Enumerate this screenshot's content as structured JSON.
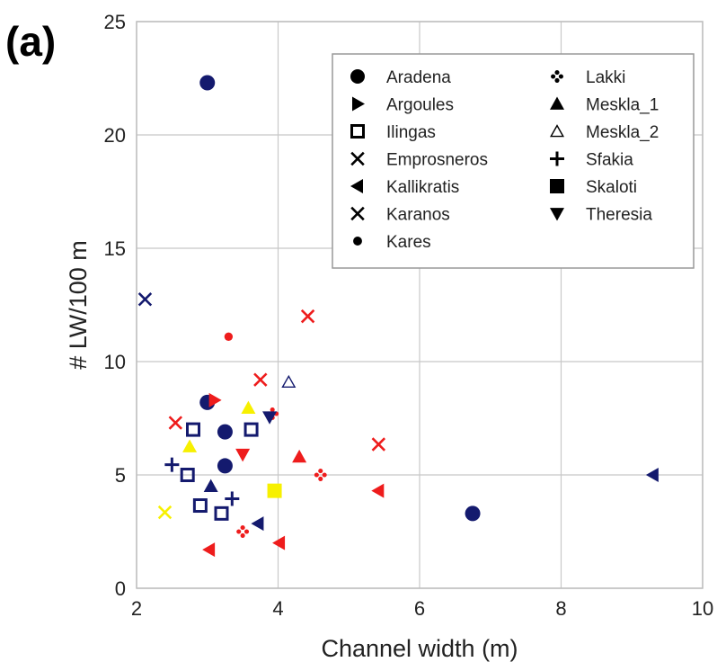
{
  "chart_data": {
    "type": "scatter",
    "panel_label": "(a)",
    "xlabel": "Channel width (m)",
    "ylabel": "# LW/100 m",
    "xlim": [
      2,
      10
    ],
    "ylim": [
      0,
      25
    ],
    "xticks": [
      "2",
      "4",
      "6",
      "8",
      "10"
    ],
    "yticks": [
      "0",
      "5",
      "10",
      "15",
      "20",
      "25"
    ],
    "grid": true,
    "legend_position": "top-right",
    "colors": {
      "navy": "#141a6e",
      "red": "#ee1c1c",
      "yellow": "#f7f000"
    },
    "legend": [
      {
        "name": "Aradena",
        "marker": "circle"
      },
      {
        "name": "Argoules",
        "marker": "triangle-right"
      },
      {
        "name": "Ilingas",
        "marker": "square-open"
      },
      {
        "name": "Emprosneros",
        "marker": "x"
      },
      {
        "name": "Kallikratis",
        "marker": "triangle-left"
      },
      {
        "name": "Karanos",
        "marker": "x"
      },
      {
        "name": "Kares",
        "marker": "dot"
      },
      {
        "name": "Lakki",
        "marker": "diamond-dots"
      },
      {
        "name": "Meskla_1",
        "marker": "triangle-up"
      },
      {
        "name": "Meskla_2",
        "marker": "triangle-up-open"
      },
      {
        "name": "Sfakia",
        "marker": "plus"
      },
      {
        "name": "Skaloti",
        "marker": "square"
      },
      {
        "name": "Theresia",
        "marker": "triangle-down"
      }
    ],
    "points": [
      {
        "series": "Aradena",
        "color": "navy",
        "x": 3.0,
        "y": 22.3
      },
      {
        "series": "Aradena",
        "color": "navy",
        "x": 3.0,
        "y": 8.2
      },
      {
        "series": "Aradena",
        "color": "navy",
        "x": 3.25,
        "y": 6.9
      },
      {
        "series": "Aradena",
        "color": "navy",
        "x": 3.25,
        "y": 5.4
      },
      {
        "series": "Aradena",
        "color": "navy",
        "x": 6.75,
        "y": 3.3
      },
      {
        "series": "Argoules",
        "color": "red",
        "x": 3.1,
        "y": 8.3
      },
      {
        "series": "Ilingas",
        "color": "navy",
        "x": 2.8,
        "y": 7.0
      },
      {
        "series": "Ilingas",
        "color": "navy",
        "x": 3.62,
        "y": 7.0
      },
      {
        "series": "Ilingas",
        "color": "navy",
        "x": 2.72,
        "y": 5.0
      },
      {
        "series": "Ilingas",
        "color": "navy",
        "x": 2.9,
        "y": 3.65
      },
      {
        "series": "Ilingas",
        "color": "navy",
        "x": 3.2,
        "y": 3.3
      },
      {
        "series": "Emprosneros",
        "color": "red",
        "x": 2.55,
        "y": 7.3
      },
      {
        "series": "Emprosneros",
        "color": "red",
        "x": 3.75,
        "y": 9.2
      },
      {
        "series": "Emprosneros",
        "color": "red",
        "x": 4.42,
        "y": 12.0
      },
      {
        "series": "Emprosneros",
        "color": "red",
        "x": 5.42,
        "y": 6.35
      },
      {
        "series": "Emprosneros",
        "color": "yellow",
        "x": 2.4,
        "y": 3.35
      },
      {
        "series": "Karanos",
        "color": "navy",
        "x": 2.12,
        "y": 12.75
      },
      {
        "series": "Kallikratis",
        "color": "navy",
        "x": 9.3,
        "y": 5.0
      },
      {
        "series": "Kallikratis",
        "color": "navy",
        "x": 3.72,
        "y": 2.85
      },
      {
        "series": "Kallikratis",
        "color": "red",
        "x": 3.03,
        "y": 1.7
      },
      {
        "series": "Kallikratis",
        "color": "red",
        "x": 4.02,
        "y": 2.0
      },
      {
        "series": "Kallikratis",
        "color": "red",
        "x": 5.42,
        "y": 4.3
      },
      {
        "series": "Kares",
        "color": "red",
        "x": 3.3,
        "y": 11.1
      },
      {
        "series": "Lakki",
        "color": "red",
        "x": 3.92,
        "y": 7.7
      },
      {
        "series": "Lakki",
        "color": "red",
        "x": 4.6,
        "y": 5.0
      },
      {
        "series": "Lakki",
        "color": "red",
        "x": 3.5,
        "y": 2.5
      },
      {
        "series": "Meskla_1",
        "color": "yellow",
        "x": 3.58,
        "y": 7.95
      },
      {
        "series": "Meskla_1",
        "color": "yellow",
        "x": 2.75,
        "y": 6.25
      },
      {
        "series": "Meskla_1",
        "color": "navy",
        "x": 3.05,
        "y": 4.5
      },
      {
        "series": "Meskla_1",
        "color": "red",
        "x": 4.3,
        "y": 5.8
      },
      {
        "series": "Meskla_2",
        "color": "navy",
        "x": 4.15,
        "y": 9.1
      },
      {
        "series": "Sfakia",
        "color": "navy",
        "x": 2.5,
        "y": 5.45
      },
      {
        "series": "Sfakia",
        "color": "navy",
        "x": 3.35,
        "y": 3.95
      },
      {
        "series": "Skaloti",
        "color": "yellow",
        "x": 3.95,
        "y": 4.3
      },
      {
        "series": "Theresia",
        "color": "red",
        "x": 3.5,
        "y": 5.9
      },
      {
        "series": "Theresia",
        "color": "navy",
        "x": 3.88,
        "y": 7.55
      }
    ]
  }
}
